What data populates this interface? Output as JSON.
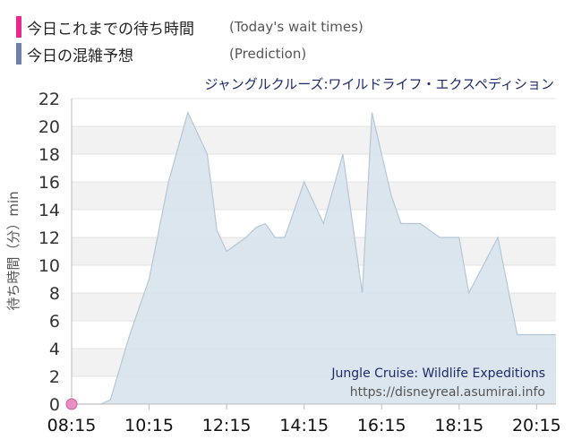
{
  "legend": {
    "actual_label_jp": "今日これまでの待ち時間",
    "actual_label_en": "(Today's wait times)",
    "prediction_label_jp": "今日の混雑予想",
    "prediction_label_en": "(Prediction)",
    "colors": {
      "actual": "#e8288c",
      "prediction": "#6f7fa8"
    }
  },
  "chart_data": {
    "type": "area",
    "title": "ジャングルクルーズ:ワイルドライフ・エクスペディション",
    "ylabel": "待ち時間（分）min",
    "watermark": [
      "Jungle Cruise: Wildlife Expeditions",
      "https://disneyreal.asumirai.info"
    ],
    "x_ticks": [
      "08:15",
      "10:15",
      "12:15",
      "14:15",
      "16:15",
      "18:15",
      "20:15"
    ],
    "y_ticks": [
      0,
      2,
      4,
      6,
      8,
      10,
      12,
      14,
      16,
      18,
      20,
      22
    ],
    "xlim": [
      "08:15",
      "20:45"
    ],
    "ylim": [
      0,
      22
    ],
    "grid": true,
    "series": [
      {
        "name": "今日の混雑予想",
        "color": "#b5c7d6",
        "x": [
          "08:15",
          "08:45",
          "09:00",
          "09:15",
          "09:45",
          "10:15",
          "10:45",
          "11:15",
          "11:45",
          "12:00",
          "12:15",
          "12:45",
          "13:00",
          "13:15",
          "13:30",
          "13:45",
          "14:15",
          "14:45",
          "15:15",
          "15:45",
          "16:00",
          "16:30",
          "16:45",
          "17:15",
          "17:45",
          "18:15",
          "18:30",
          "19:15",
          "19:45",
          "20:00",
          "20:15",
          "20:45"
        ],
        "values": [
          0,
          0,
          0,
          0.3,
          5,
          9,
          16,
          21,
          18,
          12.5,
          11,
          12,
          12.7,
          13,
          12,
          12,
          16,
          13,
          18,
          8,
          21,
          15,
          13,
          13,
          12,
          12,
          8,
          12,
          5,
          5,
          5,
          5
        ]
      },
      {
        "name": "今日これまでの待ち時間",
        "color": "#e8288c",
        "x": [
          "08:15"
        ],
        "values": [
          0
        ]
      }
    ]
  }
}
